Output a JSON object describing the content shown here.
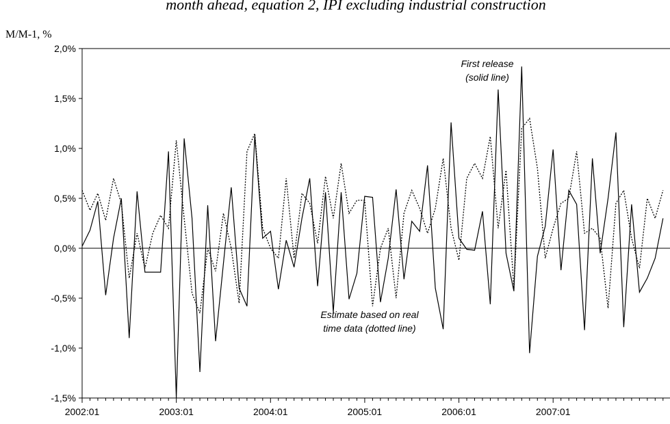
{
  "chart_data": {
    "type": "line",
    "title": "month ahead, equation 2, IPI excluding industrial construction",
    "y_label": "M/M-1, %",
    "annotations": [
      [
        "First release",
        "(solid line)"
      ],
      [
        "Estimate based on real",
        "time data (dotted line)"
      ]
    ],
    "categories": [
      "2002:01",
      null,
      null,
      null,
      null,
      null,
      null,
      null,
      null,
      null,
      null,
      null,
      "2003:01",
      null,
      null,
      null,
      null,
      null,
      null,
      null,
      null,
      null,
      null,
      null,
      "2004:01",
      null,
      null,
      null,
      null,
      null,
      null,
      null,
      null,
      null,
      null,
      null,
      "2005:01",
      null,
      null,
      null,
      null,
      null,
      null,
      null,
      null,
      null,
      null,
      null,
      "2006:01",
      null,
      null,
      null,
      null,
      null,
      null,
      null,
      null,
      null,
      null,
      null,
      "2007:01",
      null,
      null,
      null,
      null,
      null,
      null,
      null,
      null,
      null,
      null,
      null,
      null,
      null,
      null
    ],
    "series": [
      {
        "name": "First release",
        "color": "#000000",
        "dash": "solid",
        "values": [
          0.02,
          0.18,
          0.47,
          -0.47,
          0.1,
          0.5,
          -0.9,
          0.57,
          -0.24,
          -0.24,
          -0.24,
          0.97,
          -1.5,
          1.1,
          0.3,
          -1.24,
          0.43,
          -0.93,
          -0.15,
          0.61,
          -0.4,
          -0.58,
          1.13,
          0.1,
          0.17,
          -0.41,
          0.08,
          -0.19,
          0.3,
          0.7,
          -0.38,
          0.56,
          -0.64,
          0.56,
          -0.51,
          -0.25,
          0.52,
          0.51,
          -0.54,
          -0.1,
          0.59,
          -0.31,
          0.27,
          0.17,
          0.83,
          -0.4,
          -0.81,
          1.26,
          0.1,
          -0.01,
          -0.02,
          0.37,
          -0.56,
          1.59,
          -0.05,
          -0.43,
          1.82,
          -1.05,
          -0.08,
          0.22,
          0.99,
          -0.22,
          0.58,
          0.44,
          -0.82,
          0.9,
          -0.05,
          0.5,
          1.16,
          -0.79,
          0.44,
          -0.44,
          -0.3,
          -0.1,
          0.3
        ]
      },
      {
        "name": "Estimate based on real time data",
        "color": "#000000",
        "dash": "dotted",
        "values": [
          0.58,
          0.38,
          0.55,
          0.28,
          0.7,
          0.45,
          -0.3,
          0.15,
          -0.2,
          0.15,
          0.33,
          0.2,
          1.08,
          0.3,
          -0.45,
          -0.65,
          0.0,
          -0.23,
          0.35,
          0.0,
          -0.55,
          0.97,
          1.15,
          0.2,
          0.0,
          -0.1,
          0.7,
          -0.1,
          0.55,
          0.45,
          0.05,
          0.72,
          0.3,
          0.85,
          0.35,
          0.48,
          0.48,
          -0.58,
          0.0,
          0.2,
          -0.5,
          0.35,
          0.58,
          0.4,
          0.15,
          0.4,
          0.9,
          0.2,
          -0.12,
          0.7,
          0.85,
          0.7,
          1.12,
          0.2,
          0.78,
          -0.4,
          1.2,
          1.3,
          0.8,
          -0.1,
          0.2,
          0.45,
          0.5,
          0.97,
          0.15,
          0.2,
          0.1,
          -0.6,
          0.45,
          0.58,
          0.1,
          -0.2,
          0.5,
          0.3,
          0.58
        ]
      }
    ],
    "ylim": [
      -1.5,
      2.0
    ],
    "yticks": [
      {
        "value": -1.5,
        "label": "-1,5%"
      },
      {
        "value": -1.0,
        "label": "-1,0%"
      },
      {
        "value": -0.5,
        "label": "-0,5%"
      },
      {
        "value": 0,
        "label": "0,0%"
      },
      {
        "value": 0.5,
        "label": "0,5%"
      },
      {
        "value": 1.0,
        "label": "1,0%"
      },
      {
        "value": 1.5,
        "label": "1,5%"
      },
      {
        "value": 2.0,
        "label": "2,0%"
      }
    ],
    "zero_line": true
  }
}
